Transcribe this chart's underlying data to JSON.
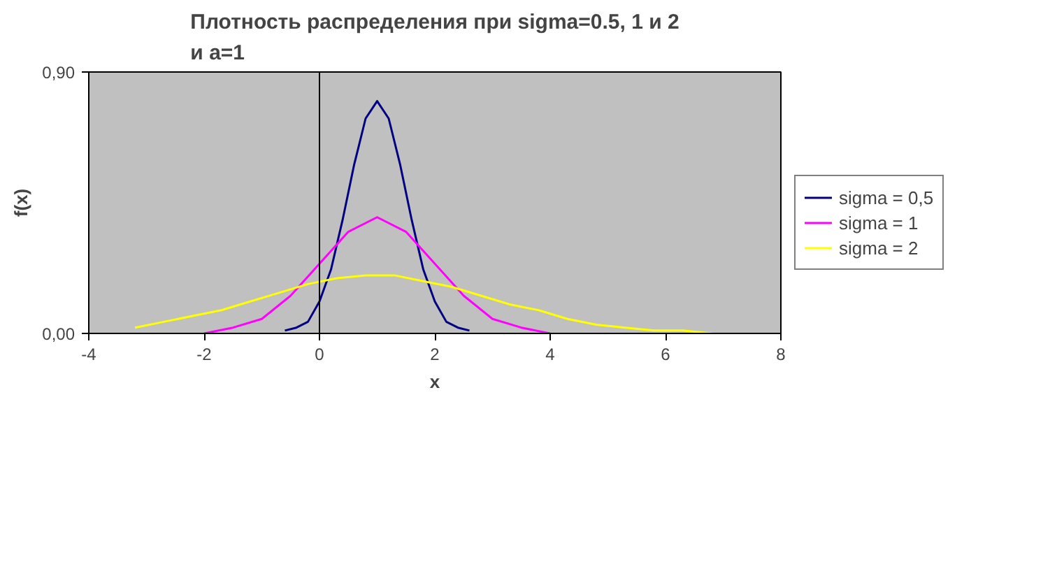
{
  "chart_data": {
    "type": "line",
    "title": "Плотность распределения при sigma=0.5, 1 и 2\nи a=1",
    "xlabel": "x",
    "ylabel": "f(x)",
    "xlim": [
      -4,
      8
    ],
    "xticks": [
      -4,
      -2,
      0,
      2,
      4,
      6,
      8
    ],
    "ylim": [
      0,
      0.9
    ],
    "yticks": [
      {
        "value": 0,
        "label": "0,00"
      },
      {
        "value": 0.9,
        "label": "0,90"
      }
    ],
    "grid": false,
    "ref_lines": [
      {
        "axis": "x",
        "value": 0,
        "color": "#000000"
      }
    ],
    "legend": "right",
    "marker": "none",
    "line_style": "solid",
    "series": [
      {
        "name": "sigma = 0,5",
        "color": "#000080",
        "x": [
          -0.6,
          -0.4,
          -0.2,
          0,
          0.2,
          0.4,
          0.6,
          0.8,
          1,
          1.2,
          1.4,
          1.6,
          1.8,
          2,
          2.2,
          2.4,
          2.6
        ],
        "values": [
          0.01,
          0.02,
          0.04,
          0.11,
          0.22,
          0.39,
          0.58,
          0.74,
          0.8,
          0.74,
          0.58,
          0.39,
          0.22,
          0.11,
          0.04,
          0.02,
          0.01
        ]
      },
      {
        "name": "sigma = 1",
        "color": "#ff00ff",
        "x": [
          -2,
          -1.5,
          -1,
          -0.5,
          0,
          0.5,
          1,
          1.5,
          2,
          2.5,
          3,
          3.5,
          4
        ],
        "values": [
          0.0,
          0.02,
          0.05,
          0.13,
          0.24,
          0.35,
          0.4,
          0.35,
          0.24,
          0.13,
          0.05,
          0.02,
          0.0
        ]
      },
      {
        "name": "sigma = 2",
        "color": "#ffff00",
        "x": [
          -3.2,
          -2.7,
          -2.2,
          -1.7,
          -1.2,
          -0.7,
          -0.2,
          0.3,
          0.8,
          1.3,
          1.8,
          2.3,
          2.8,
          3.3,
          3.8,
          4.3,
          4.8,
          5.3,
          5.8,
          6.3,
          6.8
        ],
        "values": [
          0.02,
          0.04,
          0.06,
          0.08,
          0.11,
          0.14,
          0.17,
          0.19,
          0.2,
          0.2,
          0.18,
          0.16,
          0.13,
          0.1,
          0.08,
          0.05,
          0.03,
          0.02,
          0.01,
          0.01,
          0.0
        ]
      }
    ]
  }
}
